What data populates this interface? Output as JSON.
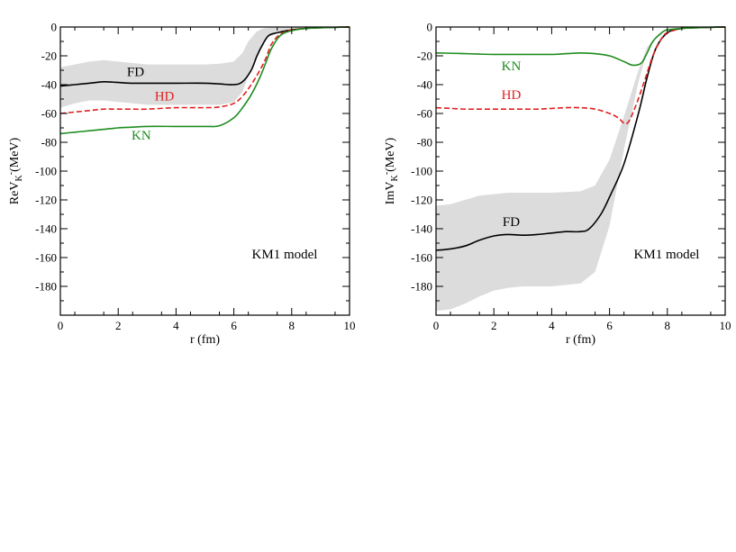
{
  "chart_data": [
    {
      "type": "line",
      "title": "",
      "xlabel": "r (fm)",
      "ylabel_main": "Re",
      "ylabel_sym": "V",
      "ylabel_sub": "K",
      "ylabel_sup": "-",
      "ylabel_unit": "(MeV)",
      "xlim": [
        0,
        10
      ],
      "ylim": [
        -200,
        0
      ],
      "xticks": [
        0,
        2,
        4,
        6,
        8,
        10
      ],
      "yticks": [
        0,
        -20,
        -40,
        -60,
        -80,
        -100,
        -120,
        -140,
        -160,
        -180
      ],
      "annotation": "KM1 model",
      "band": {
        "name": "FD uncertainty",
        "color": "#dcdcdc",
        "x": [
          0,
          0.5,
          1,
          1.5,
          2,
          2.5,
          3,
          4,
          5,
          5.5,
          6,
          6.3,
          6.5,
          6.8,
          7,
          7.2,
          7.5,
          8,
          8.5,
          9,
          9.5,
          10
        ],
        "upper": [
          -28,
          -26,
          -24,
          -23,
          -24,
          -25,
          -26,
          -26,
          -26,
          -25.5,
          -24,
          -18,
          -10,
          -3,
          -1,
          -0.5,
          -0.3,
          -0.2,
          -0.1,
          0,
          0,
          0
        ],
        "lower": [
          -56,
          -53,
          -51,
          -51,
          -52,
          -53,
          -54,
          -54,
          -54,
          -54,
          -52,
          -45,
          -34,
          -20,
          -12,
          -7,
          -4,
          -2,
          -1,
          -0.5,
          -0.2,
          0
        ]
      },
      "series": [
        {
          "name": "FD",
          "color": "#000000",
          "dash": "solid",
          "x": [
            0,
            0.5,
            1,
            1.5,
            2,
            2.5,
            3,
            4,
            5,
            5.5,
            6,
            6.3,
            6.6,
            6.8,
            7,
            7.2,
            7.5,
            8,
            8.5,
            9,
            9.5,
            10
          ],
          "y": [
            -41,
            -40,
            -39,
            -38,
            -38.5,
            -39,
            -39,
            -39,
            -39,
            -39.5,
            -40,
            -38,
            -30,
            -20,
            -12,
            -6,
            -4,
            -2,
            -1,
            -0.5,
            -0.2,
            0
          ],
          "label_at": [
            2.6,
            -34
          ]
        },
        {
          "name": "HD",
          "color": "#e02020",
          "dash": "dashed",
          "x": [
            0,
            0.5,
            1,
            1.5,
            2,
            2.5,
            3,
            4,
            5,
            5.5,
            6,
            6.3,
            6.6,
            6.9,
            7.1,
            7.3,
            7.6,
            8,
            8.5,
            9,
            9.5,
            10
          ],
          "y": [
            -60,
            -59,
            -58,
            -57,
            -57,
            -57,
            -57,
            -56,
            -56,
            -55.5,
            -53,
            -48,
            -40,
            -30,
            -22,
            -12,
            -5,
            -2,
            -1,
            -0.5,
            -0.2,
            0
          ],
          "label_at": [
            3.6,
            -51
          ]
        },
        {
          "name": "KN",
          "color": "#1e8c1e",
          "dash": "solid",
          "x": [
            0,
            0.5,
            1,
            1.5,
            2,
            2.5,
            3,
            4,
            5,
            5.5,
            6,
            6.3,
            6.6,
            6.9,
            7.1,
            7.3,
            7.6,
            8,
            8.5,
            9,
            9.5,
            10
          ],
          "y": [
            -74,
            -73,
            -72,
            -71,
            -70,
            -69.5,
            -69,
            -69,
            -69,
            -68.5,
            -63,
            -56,
            -47,
            -35,
            -25,
            -15,
            -6,
            -2.5,
            -1,
            -0.5,
            -0.2,
            0
          ],
          "label_at": [
            2.8,
            -78
          ]
        }
      ]
    },
    {
      "type": "line",
      "title": "",
      "xlabel": "r (fm)",
      "ylabel_main": "Im",
      "ylabel_sym": "V",
      "ylabel_sub": "K",
      "ylabel_sup": "-",
      "ylabel_unit": "(MeV)",
      "xlim": [
        0,
        10
      ],
      "ylim": [
        -200,
        0
      ],
      "xticks": [
        0,
        2,
        4,
        6,
        8,
        10
      ],
      "yticks": [
        0,
        -20,
        -40,
        -60,
        -80,
        -100,
        -120,
        -140,
        -160,
        -180
      ],
      "annotation": "KM1 model",
      "band": {
        "name": "FD uncertainty",
        "color": "#dcdcdc",
        "x": [
          0,
          0.5,
          1,
          1.5,
          2,
          2.5,
          3,
          4,
          5,
          5.5,
          6,
          6.5,
          7,
          7.3,
          7.6,
          8,
          8.5,
          9,
          9.5,
          10
        ],
        "upper": [
          -124,
          -123,
          -120,
          -117,
          -116,
          -115,
          -115,
          -115,
          -114,
          -110,
          -92,
          -62,
          -30,
          -14,
          -7,
          -3,
          -1,
          -0.5,
          -0.2,
          0
        ],
        "lower": [
          -197,
          -196,
          -192,
          -187,
          -183,
          -181,
          -180,
          -180,
          -178,
          -170,
          -138,
          -85,
          -38,
          -17,
          -8,
          -3,
          -1,
          -0.5,
          -0.2,
          0
        ]
      },
      "series": [
        {
          "name": "FD",
          "color": "#000000",
          "dash": "solid",
          "x": [
            0,
            0.5,
            1,
            1.5,
            2,
            2.5,
            3,
            3.5,
            4,
            4.5,
            5,
            5.3,
            5.7,
            6,
            6.5,
            7,
            7.3,
            7.6,
            8,
            8.5,
            9,
            9.5,
            10
          ],
          "y": [
            -155,
            -154,
            -152,
            -148,
            -145,
            -144,
            -144.5,
            -144,
            -143,
            -142,
            -142,
            -140,
            -130,
            -118,
            -95,
            -60,
            -35,
            -15,
            -4,
            -1,
            -0.5,
            -0.2,
            0
          ],
          "label_at": [
            2.6,
            -138
          ]
        },
        {
          "name": "HD",
          "color": "#e02020",
          "dash": "dashed",
          "x": [
            0,
            0.5,
            1,
            1.5,
            2,
            2.5,
            3,
            3.5,
            4,
            4.5,
            5,
            5.5,
            6,
            6.3,
            6.6,
            6.9,
            7.2,
            7.5,
            7.8,
            8,
            8.5,
            9,
            9.5,
            10
          ],
          "y": [
            -56,
            -56.5,
            -57,
            -57,
            -57,
            -57,
            -57,
            -57,
            -56.5,
            -56,
            -56,
            -57,
            -60,
            -63,
            -67,
            -55,
            -38,
            -20,
            -8,
            -4,
            -1,
            -0.5,
            -0.2,
            0
          ],
          "label_at": [
            2.6,
            -50
          ]
        },
        {
          "name": "KN",
          "color": "#1e8c1e",
          "dash": "solid",
          "x": [
            0,
            0.5,
            1,
            1.5,
            2,
            2.5,
            3,
            3.5,
            4,
            4.5,
            5,
            5.5,
            6,
            6.5,
            6.8,
            7.1,
            7.3,
            7.5,
            7.8,
            8,
            8.5,
            9,
            9.5,
            10
          ],
          "y": [
            -18,
            -18.2,
            -18.5,
            -18.8,
            -19,
            -19,
            -19,
            -19,
            -19,
            -18.5,
            -18,
            -18.5,
            -20,
            -24,
            -26.5,
            -25,
            -18,
            -10,
            -4,
            -2,
            -1,
            -0.5,
            -0.2,
            0
          ],
          "label_at": [
            2.6,
            -30
          ]
        }
      ]
    }
  ]
}
